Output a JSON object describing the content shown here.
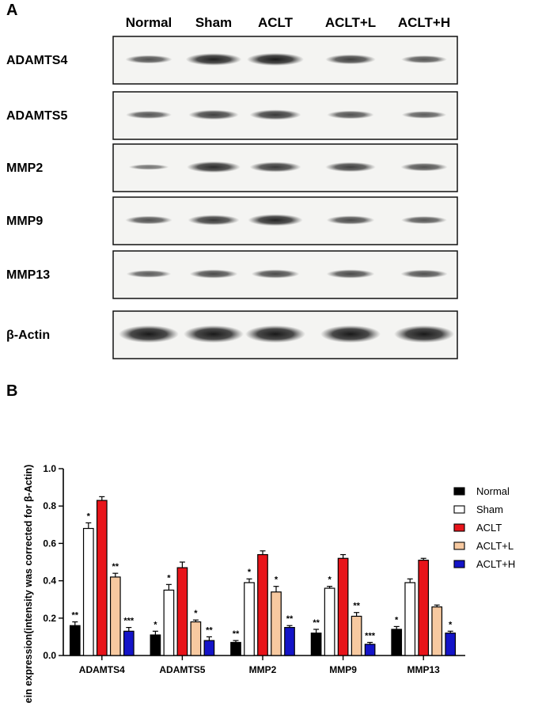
{
  "panel_a": {
    "letter": "A",
    "lanes": [
      "Normal",
      "Sham",
      "ACLT",
      "ACLT+L",
      "ACLT+H"
    ],
    "blots": [
      {
        "label": "ADAMTS4",
        "intensity": [
          0.55,
          0.95,
          1.0,
          0.7,
          0.5
        ]
      },
      {
        "label": "ADAMTS5",
        "intensity": [
          0.5,
          0.7,
          0.75,
          0.55,
          0.45
        ]
      },
      {
        "label": "MMP2",
        "intensity": [
          0.25,
          0.85,
          0.75,
          0.7,
          0.55
        ]
      },
      {
        "label": "MMP9",
        "intensity": [
          0.55,
          0.75,
          0.9,
          0.6,
          0.5
        ]
      },
      {
        "label": "MMP13",
        "intensity": [
          0.45,
          0.6,
          0.6,
          0.6,
          0.55
        ]
      },
      {
        "label": "β-Actin",
        "intensity": [
          1.0,
          1.0,
          1.0,
          1.0,
          1.0
        ]
      }
    ]
  },
  "panel_b": {
    "letter": "B"
  },
  "chart_data": {
    "type": "bar",
    "ylabel": "Protein expression(intensity was corrected for β-Actin)",
    "ylim": [
      0,
      1.0
    ],
    "yticks": [
      "0.0",
      "0.2",
      "0.4",
      "0.6",
      "0.8",
      "1.0"
    ],
    "categories": [
      "ADAMTS4",
      "ADAMTS5",
      "MMP2",
      "MMP9",
      "MMP13"
    ],
    "legend_position": "right",
    "series": [
      {
        "name": "Normal",
        "color": "#000000",
        "values": [
          0.16,
          0.11,
          0.07,
          0.12,
          0.14
        ],
        "errors": [
          0.02,
          0.02,
          0.01,
          0.02,
          0.015
        ],
        "sig": [
          "**",
          "*",
          "**",
          "**",
          "*"
        ]
      },
      {
        "name": "Sham",
        "color": "#ffffff",
        "values": [
          0.68,
          0.35,
          0.39,
          0.36,
          0.39
        ],
        "errors": [
          0.03,
          0.03,
          0.02,
          0.01,
          0.02
        ],
        "sig": [
          "*",
          "*",
          "*",
          "*",
          ""
        ]
      },
      {
        "name": "ACLT",
        "color": "#e8141a",
        "values": [
          0.83,
          0.47,
          0.54,
          0.52,
          0.51
        ],
        "errors": [
          0.02,
          0.03,
          0.02,
          0.02,
          0.01
        ],
        "sig": [
          "",
          "",
          "",
          "",
          ""
        ]
      },
      {
        "name": "ACLT+L",
        "color": "#f7c9a0",
        "values": [
          0.42,
          0.18,
          0.34,
          0.21,
          0.26
        ],
        "errors": [
          0.02,
          0.01,
          0.03,
          0.02,
          0.01
        ],
        "sig": [
          "**",
          "*",
          "*",
          "**",
          ""
        ]
      },
      {
        "name": "ACLT+H",
        "color": "#1414c8",
        "values": [
          0.13,
          0.08,
          0.15,
          0.06,
          0.12
        ],
        "errors": [
          0.02,
          0.02,
          0.01,
          0.01,
          0.01
        ],
        "sig": [
          "***",
          "**",
          "**",
          "***",
          "*"
        ]
      }
    ]
  }
}
